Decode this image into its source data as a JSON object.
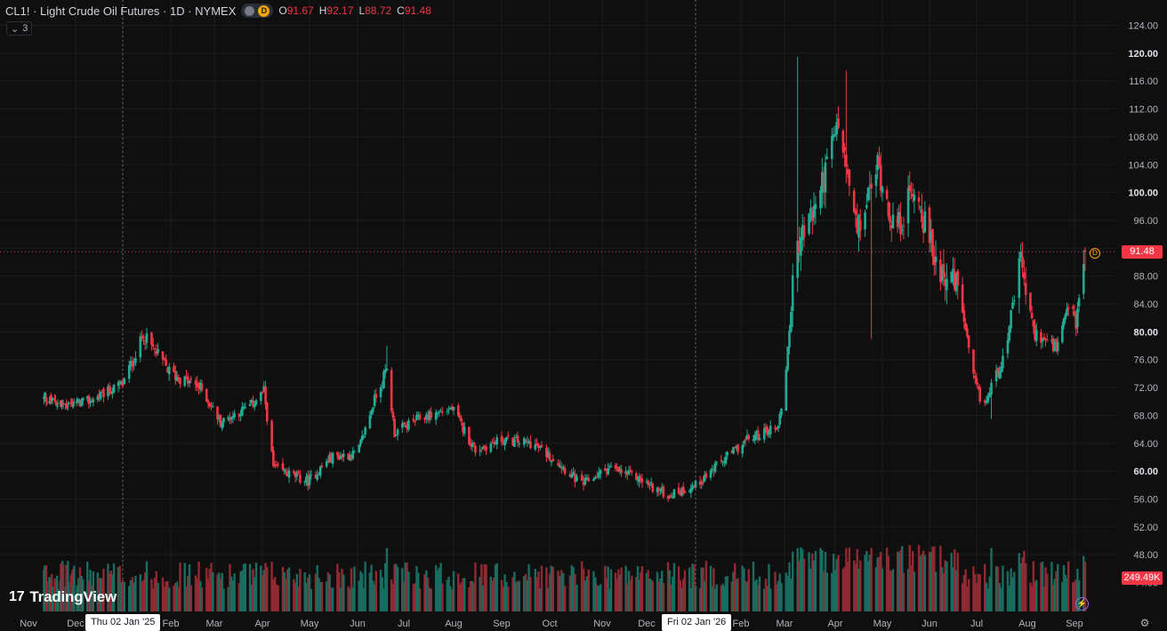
{
  "legend": {
    "title": "CL1! · Light Crude Oil Futures · 1D · NYMEX",
    "badge_letter": "D",
    "open_label": "O",
    "open": "91.67",
    "high_label": "H",
    "high": "92.17",
    "low_label": "L",
    "low": "88.72",
    "close_label": "C",
    "close": "91.48"
  },
  "indicators_toggle": {
    "chevron": "⌄",
    "count": "3"
  },
  "logo": {
    "text": "TradingView",
    "mark": "17"
  },
  "price_axis": {
    "ticks": [
      "124.00",
      "120.00",
      "116.00",
      "112.00",
      "108.00",
      "104.00",
      "100.00",
      "96.00",
      "92.00",
      "88.00",
      "84.00",
      "80.00",
      "76.00",
      "72.00",
      "68.00",
      "64.00",
      "60.00",
      "56.00",
      "52.00",
      "48.00"
    ],
    "bold_ticks": [
      "120.00",
      "100.00",
      "80.00",
      "60.00"
    ],
    "last_price": "91.48",
    "last_volume": "249.49K",
    "partial_tick": "44.00"
  },
  "time_axis": {
    "labels": [
      "Nov",
      "Dec",
      "Feb",
      "Mar",
      "Apr",
      "May",
      "Jun",
      "Jul",
      "Aug",
      "Sep",
      "Oct",
      "Nov",
      "Dec",
      "Feb",
      "Mar",
      "Apr",
      "May",
      "Jun",
      "Jul",
      "Aug",
      "Sep"
    ],
    "year_badges": [
      "Thu 02 Jan '25",
      "Fri 02 Jan '26"
    ]
  },
  "colors": {
    "background": "#0f0f0f",
    "grid": "#1c1c1c",
    "up": "#22ab94",
    "down": "#f23645",
    "volume_up": "#1a6b60",
    "volume_down": "#8f2a33",
    "last_price_line": "#f23645",
    "text": "#d1d4dc",
    "axis_text": "#b2b5be"
  },
  "chart_data": {
    "type": "candlestick",
    "symbol": "CL1!",
    "interval": "1D",
    "ylim": [
      44,
      126
    ],
    "price_path": [
      [
        "2024-10-20",
        70.5
      ],
      [
        "2024-11-15",
        69.5
      ],
      [
        "2024-12-10",
        70.0
      ],
      [
        "2025-01-02",
        72.5
      ],
      [
        "2025-01-15",
        79.5
      ],
      [
        "2025-02-01",
        74.0
      ],
      [
        "2025-02-20",
        72.0
      ],
      [
        "2025-03-05",
        67.0
      ],
      [
        "2025-03-25",
        69.5
      ],
      [
        "2025-04-02",
        71.5
      ],
      [
        "2025-04-08",
        60.5
      ],
      [
        "2025-04-30",
        58.5
      ],
      [
        "2025-05-15",
        62.0
      ],
      [
        "2025-06-01",
        62.5
      ],
      [
        "2025-06-13",
        71.0
      ],
      [
        "2025-06-20",
        74.5
      ],
      [
        "2025-06-25",
        65.5
      ],
      [
        "2025-07-10",
        67.5
      ],
      [
        "2025-07-31",
        69.0
      ],
      [
        "2025-08-15",
        63.0
      ],
      [
        "2025-09-01",
        64.5
      ],
      [
        "2025-09-20",
        64.0
      ],
      [
        "2025-10-05",
        61.5
      ],
      [
        "2025-10-20",
        58.0
      ],
      [
        "2025-11-05",
        60.5
      ],
      [
        "2025-11-25",
        59.0
      ],
      [
        "2025-12-15",
        56.5
      ],
      [
        "2026-01-02",
        58.0
      ],
      [
        "2026-01-20",
        61.5
      ],
      [
        "2026-02-05",
        64.5
      ],
      [
        "2026-02-25",
        66.5
      ],
      [
        "2026-03-01",
        72.0
      ],
      [
        "2026-03-08",
        92.0
      ],
      [
        "2026-03-20",
        98.0
      ],
      [
        "2026-04-03",
        110.0
      ],
      [
        "2026-04-15",
        94.0
      ],
      [
        "2026-04-28",
        104.0
      ],
      [
        "2026-05-10",
        94.0
      ],
      [
        "2026-05-22",
        101.0
      ],
      [
        "2026-06-05",
        90.0
      ],
      [
        "2026-06-20",
        86.0
      ],
      [
        "2026-06-28",
        74.0
      ],
      [
        "2026-07-05",
        69.0
      ],
      [
        "2026-07-18",
        77.0
      ],
      [
        "2026-07-28",
        90.0
      ],
      [
        "2026-08-05",
        80.0
      ],
      [
        "2026-08-20",
        77.5
      ],
      [
        "2026-08-30",
        84.5
      ],
      [
        "2026-09-02",
        81.0
      ],
      [
        "2026-09-08",
        91.48
      ]
    ],
    "spikes": [
      {
        "date": "2026-03-08",
        "high": 119.5
      },
      {
        "date": "2026-04-08",
        "high": 117.5
      },
      {
        "date": "2025-06-20",
        "high": 78.0
      },
      {
        "date": "2026-04-25",
        "low": 79.0
      },
      {
        "date": "2026-07-10",
        "low": 67.5
      }
    ],
    "volume_bars": "per-candle histogram along bottom",
    "last": {
      "open": 91.67,
      "high": 92.17,
      "low": 88.72,
      "close": 91.48,
      "volume": "249.49K"
    }
  }
}
